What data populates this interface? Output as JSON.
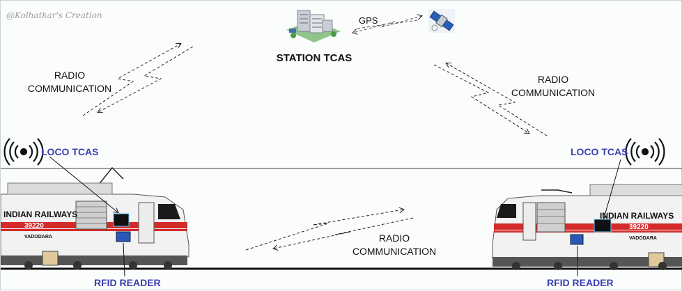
{
  "watermark": "@Kolhatkar's Creation",
  "labels": {
    "station": "STATION TCAS",
    "gps": "GPS",
    "radio_left_1": "RADIO",
    "radio_left_2": "COMMUNICATION",
    "radio_right_1": "RADIO",
    "radio_right_2": "COMMUNICATION",
    "radio_bottom_1": "RADIO",
    "radio_bottom_2": "COMMUNICATION",
    "loco_left": "LOCO TCAS",
    "loco_right": "LOCO TCAS",
    "rfid_left": "RFID READER",
    "rfid_right": "RFID READER"
  },
  "locomotives": {
    "left": {
      "brand": "INDIAN RAILWAYS",
      "number": "39220",
      "shed": "VADODARA"
    },
    "right": {
      "brand": "INDIAN RAILWAYS",
      "number": "39220",
      "shed": "VADODARA"
    }
  },
  "colors": {
    "accent_blue": "#3b3fb0",
    "loco_red": "#d42a2a",
    "loco_body": "#f4f4f4"
  },
  "icons": [
    "building-icon",
    "satellite-icon",
    "signal-waves-icon"
  ]
}
